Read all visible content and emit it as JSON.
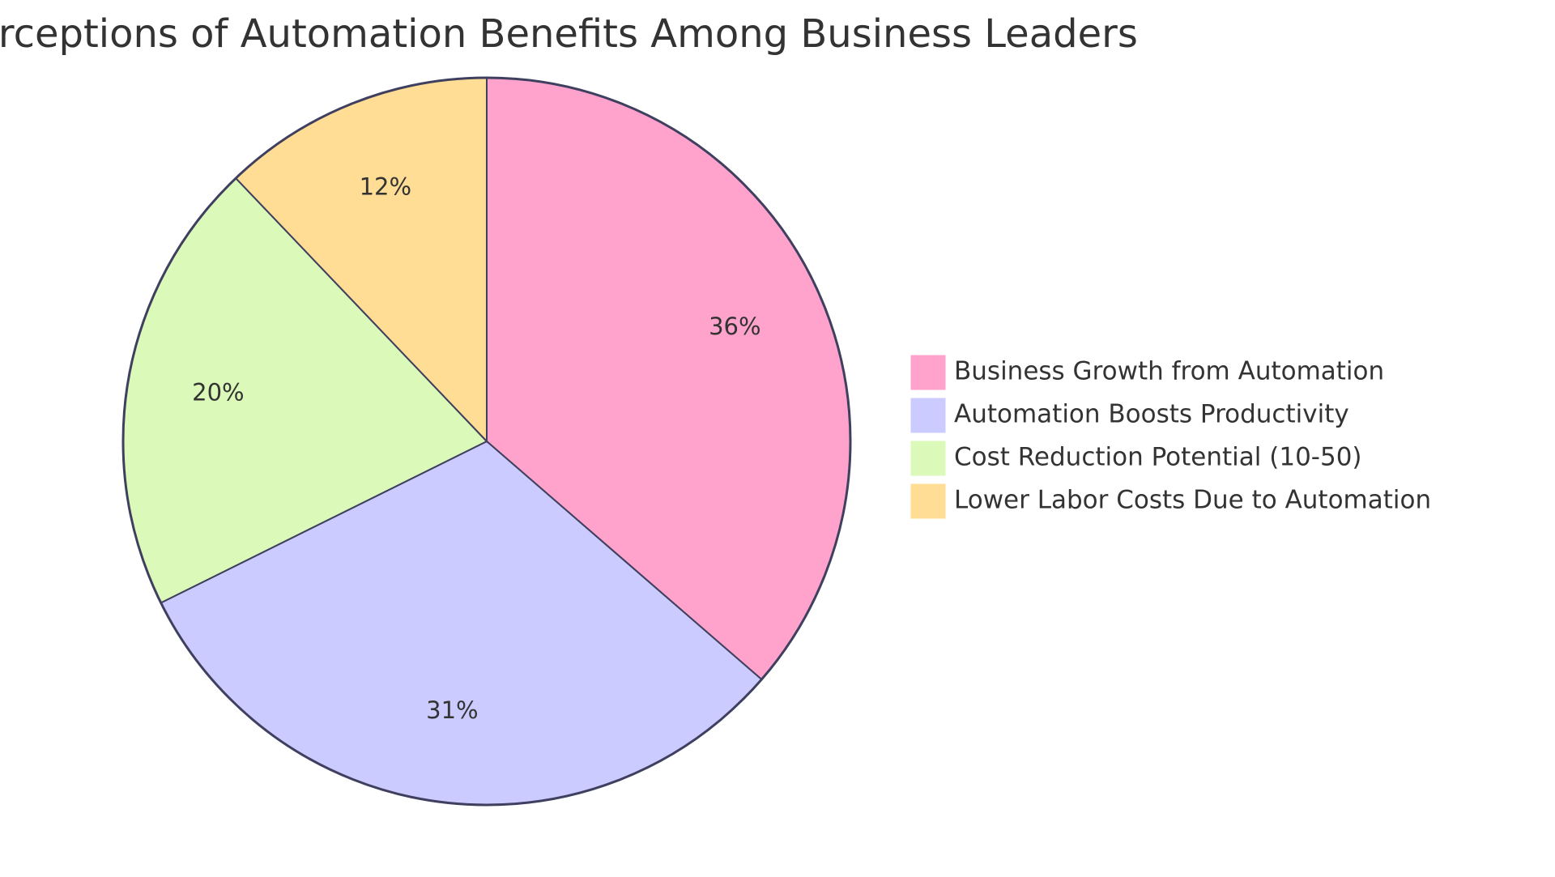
{
  "chart_data": {
    "type": "pie",
    "title": "Perceptions of Automation Benefits Among Business Leaders",
    "slices": [
      {
        "label": "Business Growth from Automation",
        "value": 36,
        "display": "36%",
        "color": "#FFA3CC"
      },
      {
        "label": "Automation Boosts Productivity",
        "value": 31,
        "display": "31%",
        "color": "#CBCBFF"
      },
      {
        "label": "Cost Reduction Potential (10-50)",
        "value": 20,
        "display": "20%",
        "color": "#DBF9B8"
      },
      {
        "label": "Lower Labor Costs Due to Automation",
        "value": 12,
        "display": "12%",
        "color": "#FFDD95"
      }
    ],
    "legend_position": "right",
    "stroke_color": "#3F3F5F"
  }
}
